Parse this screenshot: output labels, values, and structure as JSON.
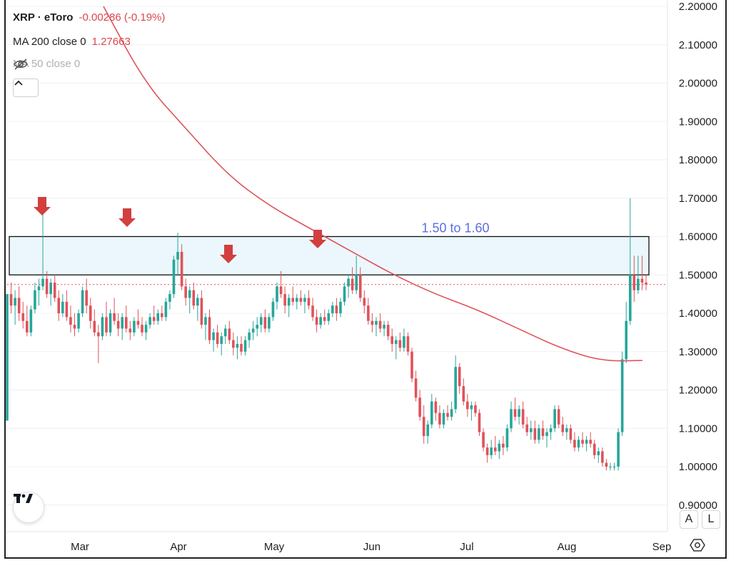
{
  "legend": {
    "symbol": "XRP · eToro",
    "change": "-0.00286 (-0.19%)",
    "ma200_label": "MA 200 close 0",
    "ma200_value": "1.27663",
    "ma50_label": "MA 50 close 0"
  },
  "axis_buttons": {
    "auto": "A",
    "log": "L"
  },
  "colors": {
    "up": "#26a69a",
    "down": "#e0525a",
    "ma": "#e0525a",
    "zone_fill": "#e8f6fb",
    "annotation": "#5b6ee1",
    "arrow": "#d23f3f"
  },
  "icons": [
    "tradingview-logo-icon",
    "eye-off-icon",
    "chevron-up-icon",
    "settings-icon",
    "arrow-down-icon"
  ],
  "chart_data": {
    "type": "candlestick",
    "title": "XRP · eToro",
    "y_ticks": [
      "0.90000",
      "1.00000",
      "1.10000",
      "1.20000",
      "1.30000",
      "1.40000",
      "1.50000",
      "1.60000",
      "1.70000",
      "1.80000",
      "1.90000",
      "2.00000",
      "2.10000",
      "2.20000"
    ],
    "ylim": [
      0.9,
      2.2
    ],
    "x_ticks": [
      "Mar",
      "Apr",
      "May",
      "Jun",
      "Jul",
      "Aug",
      "Sep"
    ],
    "annotation": {
      "label": "1.50 to 1.60",
      "y_low": 1.5,
      "y_high": 1.6
    },
    "last_price": 1.475,
    "ma200": [
      2.2,
      2.0,
      1.88,
      1.76,
      1.68,
      1.62,
      1.56,
      1.5,
      1.45,
      1.41,
      1.36,
      1.31,
      1.275,
      1.277
    ],
    "resistance_arrows": [
      "Feb 19",
      "Mar 15",
      "Apr 18",
      "May 15"
    ],
    "candles": [
      [
        1.12,
        1.45,
        1.12,
        1.45
      ],
      [
        1.45,
        1.48,
        1.4,
        1.42
      ],
      [
        1.42,
        1.46,
        1.37,
        1.44
      ],
      [
        1.44,
        1.47,
        1.38,
        1.4
      ],
      [
        1.4,
        1.43,
        1.36,
        1.38
      ],
      [
        1.38,
        1.42,
        1.34,
        1.35
      ],
      [
        1.35,
        1.42,
        1.34,
        1.41
      ],
      [
        1.41,
        1.48,
        1.4,
        1.46
      ],
      [
        1.46,
        1.49,
        1.42,
        1.47
      ],
      [
        1.47,
        1.68,
        1.46,
        1.49
      ],
      [
        1.49,
        1.51,
        1.44,
        1.45
      ],
      [
        1.45,
        1.49,
        1.42,
        1.48
      ],
      [
        1.48,
        1.5,
        1.43,
        1.44
      ],
      [
        1.44,
        1.46,
        1.38,
        1.4
      ],
      [
        1.4,
        1.45,
        1.39,
        1.43
      ],
      [
        1.43,
        1.46,
        1.38,
        1.39
      ],
      [
        1.39,
        1.42,
        1.35,
        1.37
      ],
      [
        1.37,
        1.4,
        1.34,
        1.36
      ],
      [
        1.36,
        1.41,
        1.35,
        1.4
      ],
      [
        1.4,
        1.47,
        1.39,
        1.46
      ],
      [
        1.46,
        1.49,
        1.4,
        1.42
      ],
      [
        1.42,
        1.44,
        1.36,
        1.38
      ],
      [
        1.38,
        1.41,
        1.34,
        1.35
      ],
      [
        1.35,
        1.37,
        1.27,
        1.34
      ],
      [
        1.34,
        1.4,
        1.33,
        1.39
      ],
      [
        1.39,
        1.43,
        1.34,
        1.35
      ],
      [
        1.35,
        1.41,
        1.34,
        1.4
      ],
      [
        1.4,
        1.44,
        1.37,
        1.38
      ],
      [
        1.38,
        1.4,
        1.34,
        1.36
      ],
      [
        1.36,
        1.4,
        1.33,
        1.39
      ],
      [
        1.39,
        1.42,
        1.35,
        1.36
      ],
      [
        1.36,
        1.38,
        1.33,
        1.35
      ],
      [
        1.35,
        1.39,
        1.34,
        1.38
      ],
      [
        1.38,
        1.41,
        1.36,
        1.37
      ],
      [
        1.37,
        1.39,
        1.34,
        1.35
      ],
      [
        1.35,
        1.38,
        1.33,
        1.37
      ],
      [
        1.37,
        1.4,
        1.36,
        1.39
      ],
      [
        1.39,
        1.42,
        1.37,
        1.38
      ],
      [
        1.38,
        1.41,
        1.37,
        1.4
      ],
      [
        1.4,
        1.42,
        1.38,
        1.39
      ],
      [
        1.39,
        1.44,
        1.38,
        1.43
      ],
      [
        1.43,
        1.46,
        1.41,
        1.45
      ],
      [
        1.45,
        1.55,
        1.44,
        1.54
      ],
      [
        1.54,
        1.61,
        1.5,
        1.56
      ],
      [
        1.56,
        1.58,
        1.46,
        1.47
      ],
      [
        1.47,
        1.49,
        1.42,
        1.44
      ],
      [
        1.44,
        1.47,
        1.4,
        1.46
      ],
      [
        1.46,
        1.48,
        1.41,
        1.42
      ],
      [
        1.42,
        1.45,
        1.38,
        1.44
      ],
      [
        1.44,
        1.46,
        1.36,
        1.37
      ],
      [
        1.37,
        1.4,
        1.33,
        1.39
      ],
      [
        1.39,
        1.41,
        1.32,
        1.33
      ],
      [
        1.33,
        1.36,
        1.3,
        1.35
      ],
      [
        1.35,
        1.37,
        1.31,
        1.32
      ],
      [
        1.32,
        1.35,
        1.29,
        1.34
      ],
      [
        1.34,
        1.37,
        1.32,
        1.36
      ],
      [
        1.36,
        1.38,
        1.32,
        1.33
      ],
      [
        1.33,
        1.35,
        1.29,
        1.31
      ],
      [
        1.31,
        1.34,
        1.28,
        1.32
      ],
      [
        1.32,
        1.34,
        1.29,
        1.3
      ],
      [
        1.3,
        1.34,
        1.29,
        1.33
      ],
      [
        1.33,
        1.36,
        1.31,
        1.35
      ],
      [
        1.35,
        1.38,
        1.33,
        1.36
      ],
      [
        1.36,
        1.39,
        1.34,
        1.37
      ],
      [
        1.37,
        1.4,
        1.35,
        1.39
      ],
      [
        1.39,
        1.41,
        1.35,
        1.36
      ],
      [
        1.36,
        1.4,
        1.35,
        1.39
      ],
      [
        1.39,
        1.44,
        1.38,
        1.43
      ],
      [
        1.43,
        1.48,
        1.41,
        1.47
      ],
      [
        1.47,
        1.51,
        1.44,
        1.45
      ],
      [
        1.45,
        1.47,
        1.4,
        1.42
      ],
      [
        1.42,
        1.45,
        1.39,
        1.44
      ],
      [
        1.44,
        1.47,
        1.42,
        1.43
      ],
      [
        1.43,
        1.45,
        1.41,
        1.44
      ],
      [
        1.44,
        1.46,
        1.42,
        1.43
      ],
      [
        1.43,
        1.45,
        1.4,
        1.44
      ],
      [
        1.44,
        1.46,
        1.41,
        1.42
      ],
      [
        1.42,
        1.44,
        1.38,
        1.39
      ],
      [
        1.39,
        1.41,
        1.35,
        1.37
      ],
      [
        1.37,
        1.4,
        1.36,
        1.39
      ],
      [
        1.39,
        1.41,
        1.37,
        1.38
      ],
      [
        1.38,
        1.41,
        1.37,
        1.4
      ],
      [
        1.4,
        1.43,
        1.39,
        1.42
      ],
      [
        1.42,
        1.44,
        1.38,
        1.4
      ],
      [
        1.4,
        1.44,
        1.39,
        1.43
      ],
      [
        1.43,
        1.48,
        1.42,
        1.47
      ],
      [
        1.47,
        1.5,
        1.44,
        1.49
      ],
      [
        1.49,
        1.52,
        1.45,
        1.46
      ],
      [
        1.46,
        1.55,
        1.45,
        1.5
      ],
      [
        1.5,
        1.52,
        1.43,
        1.44
      ],
      [
        1.44,
        1.46,
        1.4,
        1.42
      ],
      [
        1.42,
        1.44,
        1.37,
        1.38
      ],
      [
        1.38,
        1.4,
        1.35,
        1.37
      ],
      [
        1.37,
        1.39,
        1.34,
        1.38
      ],
      [
        1.38,
        1.4,
        1.35,
        1.36
      ],
      [
        1.36,
        1.38,
        1.34,
        1.37
      ],
      [
        1.37,
        1.38,
        1.33,
        1.34
      ],
      [
        1.34,
        1.36,
        1.3,
        1.32
      ],
      [
        1.32,
        1.34,
        1.28,
        1.33
      ],
      [
        1.33,
        1.35,
        1.3,
        1.31
      ],
      [
        1.31,
        1.36,
        1.3,
        1.34
      ],
      [
        1.34,
        1.35,
        1.29,
        1.3
      ],
      [
        1.3,
        1.31,
        1.22,
        1.23
      ],
      [
        1.23,
        1.25,
        1.17,
        1.18
      ],
      [
        1.18,
        1.2,
        1.12,
        1.13
      ],
      [
        1.13,
        1.16,
        1.06,
        1.08
      ],
      [
        1.08,
        1.12,
        1.06,
        1.11
      ],
      [
        1.11,
        1.19,
        1.1,
        1.17
      ],
      [
        1.17,
        1.18,
        1.12,
        1.14
      ],
      [
        1.14,
        1.16,
        1.1,
        1.11
      ],
      [
        1.11,
        1.15,
        1.1,
        1.14
      ],
      [
        1.14,
        1.16,
        1.12,
        1.13
      ],
      [
        1.13,
        1.17,
        1.12,
        1.15
      ],
      [
        1.15,
        1.29,
        1.14,
        1.26
      ],
      [
        1.26,
        1.27,
        1.19,
        1.21
      ],
      [
        1.21,
        1.23,
        1.16,
        1.17
      ],
      [
        1.17,
        1.19,
        1.13,
        1.15
      ],
      [
        1.15,
        1.17,
        1.12,
        1.16
      ],
      [
        1.16,
        1.17,
        1.13,
        1.14
      ],
      [
        1.14,
        1.15,
        1.08,
        1.09
      ],
      [
        1.09,
        1.1,
        1.04,
        1.05
      ],
      [
        1.05,
        1.06,
        1.01,
        1.03
      ],
      [
        1.03,
        1.07,
        1.02,
        1.05
      ],
      [
        1.05,
        1.08,
        1.03,
        1.04
      ],
      [
        1.04,
        1.07,
        1.02,
        1.06
      ],
      [
        1.06,
        1.08,
        1.03,
        1.05
      ],
      [
        1.05,
        1.11,
        1.04,
        1.1
      ],
      [
        1.1,
        1.17,
        1.09,
        1.15
      ],
      [
        1.15,
        1.18,
        1.12,
        1.13
      ],
      [
        1.13,
        1.16,
        1.11,
        1.15
      ],
      [
        1.15,
        1.17,
        1.1,
        1.11
      ],
      [
        1.11,
        1.13,
        1.08,
        1.09
      ],
      [
        1.09,
        1.12,
        1.07,
        1.1
      ],
      [
        1.1,
        1.12,
        1.06,
        1.07
      ],
      [
        1.07,
        1.11,
        1.06,
        1.1
      ],
      [
        1.1,
        1.12,
        1.07,
        1.08
      ],
      [
        1.08,
        1.1,
        1.05,
        1.09
      ],
      [
        1.09,
        1.11,
        1.07,
        1.1
      ],
      [
        1.1,
        1.16,
        1.09,
        1.15
      ],
      [
        1.15,
        1.16,
        1.1,
        1.11
      ],
      [
        1.11,
        1.13,
        1.08,
        1.09
      ],
      [
        1.09,
        1.11,
        1.07,
        1.1
      ],
      [
        1.1,
        1.11,
        1.06,
        1.07
      ],
      [
        1.07,
        1.09,
        1.04,
        1.05
      ],
      [
        1.05,
        1.08,
        1.04,
        1.07
      ],
      [
        1.07,
        1.09,
        1.05,
        1.06
      ],
      [
        1.06,
        1.08,
        1.04,
        1.07
      ],
      [
        1.07,
        1.09,
        1.05,
        1.06
      ],
      [
        1.06,
        1.07,
        1.02,
        1.03
      ],
      [
        1.03,
        1.05,
        1.01,
        1.04
      ],
      [
        1.04,
        1.05,
        1.0,
        1.01
      ],
      [
        1.01,
        1.02,
        0.99,
        1.0
      ],
      [
        1.0,
        1.01,
        0.99,
        1.0
      ],
      [
        1.0,
        1.01,
        0.99,
        1.0
      ],
      [
        1.0,
        1.1,
        0.99,
        1.09
      ],
      [
        1.09,
        1.3,
        1.08,
        1.28
      ],
      [
        1.28,
        1.43,
        1.27,
        1.38
      ],
      [
        1.38,
        1.7,
        1.37,
        1.5
      ],
      [
        1.5,
        1.55,
        1.43,
        1.46
      ],
      [
        1.46,
        1.55,
        1.45,
        1.49
      ],
      [
        1.49,
        1.55,
        1.46,
        1.48
      ],
      [
        1.48,
        1.5,
        1.46,
        1.475
      ]
    ]
  }
}
